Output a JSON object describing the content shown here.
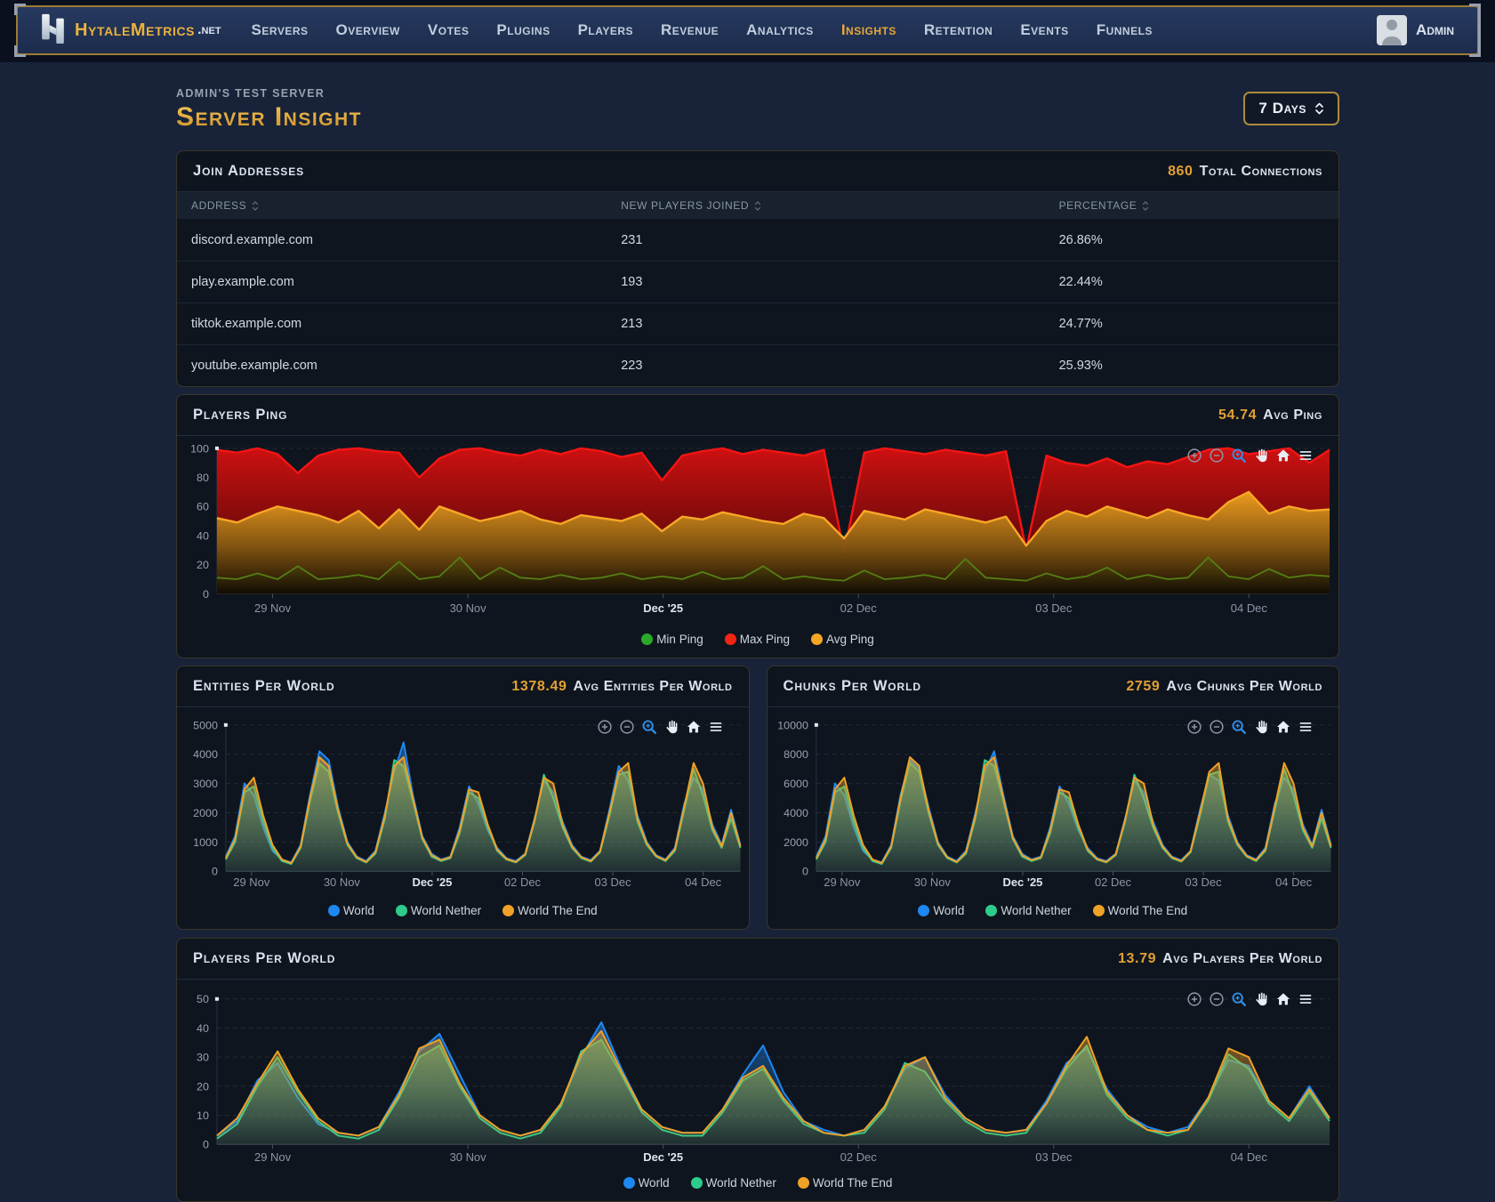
{
  "nav": {
    "brand": {
      "name": "HytaleMetrics",
      "tld": ".net"
    },
    "items": [
      {
        "label": "Servers"
      },
      {
        "label": "Overview"
      },
      {
        "label": "Votes"
      },
      {
        "label": "Plugins"
      },
      {
        "label": "Players"
      },
      {
        "label": "Revenue"
      },
      {
        "label": "Analytics"
      },
      {
        "label": "Insights",
        "active": true
      },
      {
        "label": "Retention"
      },
      {
        "label": "Events"
      },
      {
        "label": "Funnels"
      }
    ],
    "user": {
      "label": "Admin"
    }
  },
  "page": {
    "server_label": "Admin's Test Server",
    "title": "Server Insight",
    "range_selector": "7 Days"
  },
  "join_addresses": {
    "title": "Join Addresses",
    "total_value": "860",
    "total_label": "Total Connections",
    "columns": [
      "Address",
      "New Players Joined",
      "Percentage"
    ],
    "rows": [
      [
        "discord.example.com",
        "231",
        "26.86%"
      ],
      [
        "play.example.com",
        "193",
        "22.44%"
      ],
      [
        "tiktok.example.com",
        "213",
        "24.77%"
      ],
      [
        "youtube.example.com",
        "223",
        "25.93%"
      ]
    ]
  },
  "chart_toolbar": [
    "zoom-in-icon",
    "zoom-out-icon",
    "selection-zoom-icon",
    "pan-icon",
    "reset-home-icon",
    "menu-icon"
  ],
  "chart_data": [
    {
      "type": "area",
      "title": "Players Ping",
      "stat_value": "54.74",
      "stat_label": "Avg Ping",
      "categories": [
        "29 Nov",
        "30 Nov",
        "Dec '25",
        "02 Dec",
        "03 Dec",
        "04 Dec"
      ],
      "emphasis_index": 2,
      "ylim": [
        0,
        100
      ],
      "yticks": [
        0,
        20,
        40,
        60,
        80,
        100
      ],
      "grid": "dashed",
      "legend_position": "bottom",
      "series": [
        {
          "name": "Max Ping",
          "color": "#f51414",
          "legend": "#f22414",
          "width": 2.4,
          "fill": [
            [
              0,
              "#d31010",
              0.97
            ],
            [
              0.55,
              "#7e0a0a",
              0.95
            ],
            [
              1,
              "#2e0404",
              0.97
            ]
          ],
          "values": [
            99,
            97,
            100,
            96,
            83,
            95,
            99,
            100,
            98,
            97,
            80,
            93,
            99,
            100,
            97,
            95,
            99,
            96,
            100,
            98,
            94,
            97,
            78,
            95,
            98,
            100,
            96,
            99,
            97,
            95,
            99,
            28,
            97,
            100,
            98,
            96,
            99,
            97,
            95,
            98,
            30,
            95,
            90,
            88,
            93,
            87,
            91,
            89,
            94,
            99,
            100,
            96,
            98,
            100,
            90,
            99
          ]
        },
        {
          "name": "Avg Ping",
          "color": "#f8a826",
          "legend": "#f5a623",
          "width": 2.4,
          "fill": [
            [
              0,
              "#ef9e1e",
              0.97
            ],
            [
              0.5,
              "#8a5d12",
              0.95
            ],
            [
              1,
              "#100a02",
              0.97
            ]
          ],
          "values": [
            52,
            49,
            55,
            60,
            57,
            54,
            49,
            57,
            45,
            58,
            44,
            60,
            55,
            50,
            53,
            57,
            51,
            48,
            54,
            52,
            50,
            55,
            43,
            53,
            51,
            56,
            53,
            50,
            48,
            55,
            52,
            38,
            57,
            54,
            51,
            58,
            55,
            52,
            49,
            53,
            33,
            50,
            57,
            53,
            60,
            56,
            52,
            58,
            54,
            51,
            63,
            70,
            55,
            60,
            57,
            58
          ]
        },
        {
          "name": "Min Ping",
          "color": "#547f14",
          "legend": "#2aa82a",
          "width": 1.8,
          "fill": [
            [
              0,
              "#3f6410",
              0.3
            ],
            [
              1,
              "#182605",
              0.05
            ]
          ],
          "values": [
            11,
            10,
            14,
            10,
            19,
            10,
            11,
            13,
            10,
            22,
            10,
            12,
            25,
            10,
            18,
            11,
            10,
            13,
            10,
            11,
            14,
            10,
            12,
            10,
            15,
            10,
            11,
            19,
            10,
            12,
            10,
            9,
            16,
            10,
            11,
            13,
            10,
            24,
            11,
            10,
            9,
            14,
            10,
            12,
            18,
            10,
            13,
            10,
            11,
            25,
            12,
            10,
            17,
            11,
            13,
            12
          ]
        }
      ],
      "legend_order": [
        "Min Ping",
        "Max Ping",
        "Avg Ping"
      ]
    },
    {
      "type": "area",
      "title": "Entities Per World",
      "stat_value": "1378.49",
      "stat_label": "Avg Entities Per World",
      "categories": [
        "29 Nov",
        "30 Nov",
        "Dec '25",
        "02 Dec",
        "03 Dec",
        "04 Dec"
      ],
      "emphasis_index": 2,
      "ylim": [
        0,
        5000
      ],
      "yticks": [
        0,
        1000,
        2000,
        3000,
        4000,
        5000
      ],
      "grid": "dashed",
      "legend_position": "bottom",
      "series": [
        {
          "name": "World",
          "color": "#1e88f2",
          "width": 2,
          "fill": [
            [
              0,
              "#1e88f2",
              0.5
            ],
            [
              1,
              "#1e88f2",
              0.06
            ]
          ],
          "values": [
            500,
            1200,
            3000,
            2600,
            1500,
            700,
            400,
            300,
            900,
            2600,
            4100,
            3800,
            2200,
            1000,
            500,
            350,
            700,
            2000,
            3400,
            4400,
            2600,
            1200,
            600,
            400,
            500,
            1500,
            2900,
            2300,
            1400,
            800,
            450,
            350,
            600,
            1800,
            3100,
            2700,
            1700,
            900,
            500,
            380,
            700,
            2100,
            3600,
            3100,
            1900,
            1000,
            550,
            400,
            800,
            2300,
            3200,
            2800,
            1600,
            900,
            2100,
            900
          ]
        },
        {
          "name": "World Nether",
          "color": "#2dcc8d",
          "width": 2,
          "fill": [
            [
              0,
              "#2dcc8d",
              0.5
            ],
            [
              1,
              "#2dcc8d",
              0.06
            ]
          ],
          "values": [
            400,
            1000,
            2700,
            2900,
            1700,
            800,
            350,
            250,
            800,
            2400,
            3700,
            3400,
            2000,
            900,
            450,
            300,
            600,
            1800,
            3800,
            3600,
            2400,
            1100,
            500,
            350,
            450,
            1300,
            2700,
            2500,
            1500,
            700,
            400,
            300,
            550,
            1700,
            3300,
            2500,
            1500,
            800,
            450,
            330,
            650,
            1900,
            3300,
            3400,
            1700,
            900,
            500,
            350,
            700,
            2100,
            3500,
            2600,
            1400,
            800,
            1800,
            800
          ]
        },
        {
          "name": "World The End",
          "color": "#f0a127",
          "width": 2,
          "fill": [
            [
              0,
              "#f0a127",
              0.5
            ],
            [
              1,
              "#f0a127",
              0.06
            ]
          ],
          "values": [
            450,
            1100,
            2800,
            3200,
            1900,
            900,
            400,
            280,
            850,
            2500,
            3900,
            3600,
            2100,
            950,
            480,
            320,
            650,
            1900,
            3600,
            3900,
            2500,
            1150,
            550,
            380,
            480,
            1400,
            2800,
            2700,
            1600,
            750,
            420,
            320,
            580,
            1750,
            3200,
            3000,
            1600,
            850,
            480,
            350,
            680,
            2000,
            3400,
            3700,
            1800,
            950,
            520,
            380,
            750,
            2200,
            3700,
            3000,
            1500,
            850,
            2000,
            850
          ]
        }
      ]
    },
    {
      "type": "area",
      "title": "Chunks Per World",
      "stat_value": "2759",
      "stat_label": "Avg Chunks Per World",
      "categories": [
        "29 Nov",
        "30 Nov",
        "Dec '25",
        "02 Dec",
        "03 Dec",
        "04 Dec"
      ],
      "emphasis_index": 2,
      "ylim": [
        0,
        10000
      ],
      "yticks": [
        0,
        2000,
        4000,
        6000,
        8000,
        10000
      ],
      "grid": "dashed",
      "legend_position": "bottom",
      "series": [
        {
          "name": "World",
          "color": "#1e88f2",
          "width": 2,
          "fill": [
            [
              0,
              "#1e88f2",
              0.5
            ],
            [
              1,
              "#1e88f2",
              0.06
            ]
          ],
          "values": [
            1000,
            2400,
            6000,
            5200,
            3000,
            1400,
            800,
            600,
            1800,
            5200,
            7600,
            7000,
            4400,
            2000,
            1000,
            700,
            1400,
            4000,
            6800,
            8200,
            5200,
            2400,
            1200,
            800,
            1000,
            3000,
            5800,
            4600,
            2800,
            1600,
            900,
            700,
            1200,
            3600,
            6200,
            5400,
            3400,
            1800,
            1000,
            760,
            1400,
            4200,
            6600,
            6200,
            3800,
            2000,
            1100,
            800,
            1600,
            4600,
            6400,
            5600,
            3200,
            1800,
            4200,
            1800
          ]
        },
        {
          "name": "World Nether",
          "color": "#2dcc8d",
          "width": 2,
          "fill": [
            [
              0,
              "#2dcc8d",
              0.5
            ],
            [
              1,
              "#2dcc8d",
              0.06
            ]
          ],
          "values": [
            800,
            2000,
            5400,
            5800,
            3400,
            1600,
            700,
            500,
            1600,
            4800,
            7400,
            6800,
            4000,
            1800,
            900,
            600,
            1200,
            3600,
            7600,
            7200,
            4800,
            2200,
            1000,
            700,
            900,
            2600,
            5400,
            5000,
            3000,
            1400,
            800,
            600,
            1100,
            3400,
            6600,
            5000,
            3000,
            1600,
            900,
            660,
            1300,
            3800,
            6600,
            6800,
            3400,
            1800,
            1000,
            700,
            1400,
            4200,
            7000,
            5200,
            2800,
            1600,
            3600,
            1600
          ]
        },
        {
          "name": "World The End",
          "color": "#f0a127",
          "width": 2,
          "fill": [
            [
              0,
              "#f0a127",
              0.5
            ],
            [
              1,
              "#f0a127",
              0.06
            ]
          ],
          "values": [
            900,
            2200,
            5600,
            6400,
            3800,
            1800,
            800,
            560,
            1700,
            5000,
            7800,
            7200,
            4200,
            1900,
            960,
            640,
            1300,
            3800,
            7200,
            7800,
            5000,
            2300,
            1100,
            760,
            960,
            2800,
            5600,
            5400,
            3200,
            1500,
            840,
            640,
            1160,
            3500,
            6400,
            6000,
            3200,
            1700,
            960,
            700,
            1360,
            4000,
            6800,
            7400,
            3600,
            1900,
            1040,
            760,
            1500,
            4400,
            7400,
            6000,
            3000,
            1700,
            4000,
            1700
          ]
        }
      ]
    },
    {
      "type": "area",
      "title": "Players Per World",
      "stat_value": "13.79",
      "stat_label": "Avg Players Per World",
      "categories": [
        "29 Nov",
        "30 Nov",
        "Dec '25",
        "02 Dec",
        "03 Dec",
        "04 Dec"
      ],
      "emphasis_index": 2,
      "ylim": [
        0,
        50
      ],
      "yticks": [
        0,
        10,
        20,
        30,
        40,
        50
      ],
      "grid": "dashed",
      "legend_position": "bottom",
      "series": [
        {
          "name": "World",
          "color": "#1e88f2",
          "width": 2,
          "fill": [
            [
              0,
              "#1e88f2",
              0.5
            ],
            [
              1,
              "#1e88f2",
              0.06
            ]
          ],
          "values": [
            3,
            8,
            22,
            28,
            16,
            7,
            4,
            3,
            6,
            18,
            32,
            38,
            24,
            10,
            5,
            3,
            5,
            14,
            30,
            42,
            26,
            12,
            6,
            4,
            4,
            12,
            24,
            34,
            18,
            8,
            5,
            3,
            5,
            13,
            26,
            30,
            17,
            9,
            5,
            4,
            5,
            15,
            28,
            33,
            19,
            10,
            6,
            4,
            6,
            16,
            29,
            27,
            15,
            9,
            20,
            9
          ]
        },
        {
          "name": "World Nether",
          "color": "#2dcc8d",
          "width": 2,
          "fill": [
            [
              0,
              "#2dcc8d",
              0.5
            ],
            [
              1,
              "#2dcc8d",
              0.06
            ]
          ],
          "values": [
            2,
            7,
            20,
            30,
            18,
            8,
            3,
            2,
            5,
            16,
            30,
            34,
            20,
            9,
            4,
            2,
            4,
            13,
            32,
            36,
            24,
            11,
            5,
            3,
            3,
            11,
            22,
            26,
            15,
            7,
            4,
            3,
            4,
            12,
            28,
            25,
            15,
            8,
            4,
            3,
            4,
            14,
            26,
            34,
            17,
            9,
            5,
            3,
            5,
            15,
            31,
            26,
            14,
            8,
            18,
            8
          ]
        },
        {
          "name": "World The End",
          "color": "#f0a127",
          "width": 2,
          "fill": [
            [
              0,
              "#f0a127",
              0.5
            ],
            [
              1,
              "#f0a127",
              0.06
            ]
          ],
          "values": [
            3,
            9,
            21,
            32,
            19,
            9,
            4,
            3,
            6,
            17,
            33,
            36,
            21,
            10,
            5,
            3,
            5,
            14,
            31,
            39,
            25,
            12,
            6,
            4,
            4,
            12,
            23,
            27,
            16,
            8,
            4,
            3,
            5,
            13,
            27,
            30,
            16,
            9,
            5,
            4,
            5,
            14,
            27,
            37,
            18,
            10,
            5,
            4,
            5,
            16,
            33,
            30,
            15,
            9,
            19,
            9
          ]
        }
      ]
    }
  ]
}
